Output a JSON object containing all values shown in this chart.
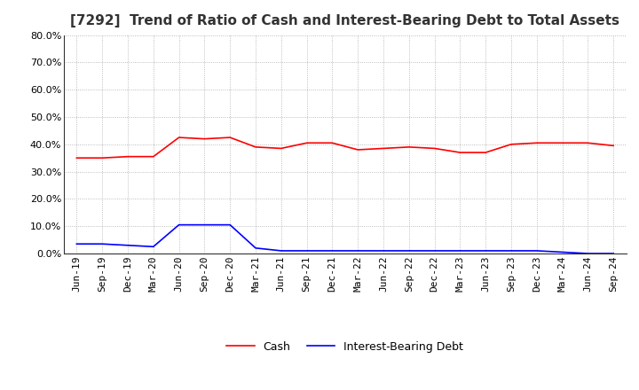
{
  "title": "[7292]  Trend of Ratio of Cash and Interest-Bearing Debt to Total Assets",
  "x_labels": [
    "Jun-19",
    "Sep-19",
    "Dec-19",
    "Mar-20",
    "Jun-20",
    "Sep-20",
    "Dec-20",
    "Mar-21",
    "Jun-21",
    "Sep-21",
    "Dec-21",
    "Mar-22",
    "Jun-22",
    "Sep-22",
    "Dec-22",
    "Mar-23",
    "Jun-23",
    "Sep-23",
    "Dec-23",
    "Mar-24",
    "Jun-24",
    "Sep-24"
  ],
  "cash": [
    35.0,
    35.0,
    35.5,
    35.5,
    42.5,
    42.0,
    42.5,
    39.0,
    38.5,
    40.5,
    40.5,
    38.0,
    38.5,
    39.0,
    38.5,
    37.0,
    37.0,
    40.0,
    40.5,
    40.5,
    40.5,
    39.5
  ],
  "ibd": [
    3.5,
    3.5,
    3.0,
    2.5,
    10.5,
    10.5,
    10.5,
    2.0,
    1.0,
    1.0,
    1.0,
    1.0,
    1.0,
    1.0,
    1.0,
    1.0,
    1.0,
    1.0,
    1.0,
    0.5,
    0.0,
    0.0
  ],
  "cash_color": "#FF0000",
  "ibd_color": "#0000FF",
  "ylim": [
    0.0,
    80.0
  ],
  "yticks": [
    0.0,
    10.0,
    20.0,
    30.0,
    40.0,
    50.0,
    60.0,
    70.0,
    80.0
  ],
  "background_color": "#FFFFFF",
  "grid_color": "#AAAAAA",
  "title_fontsize": 11,
  "tick_fontsize": 8,
  "legend_fontsize": 9
}
